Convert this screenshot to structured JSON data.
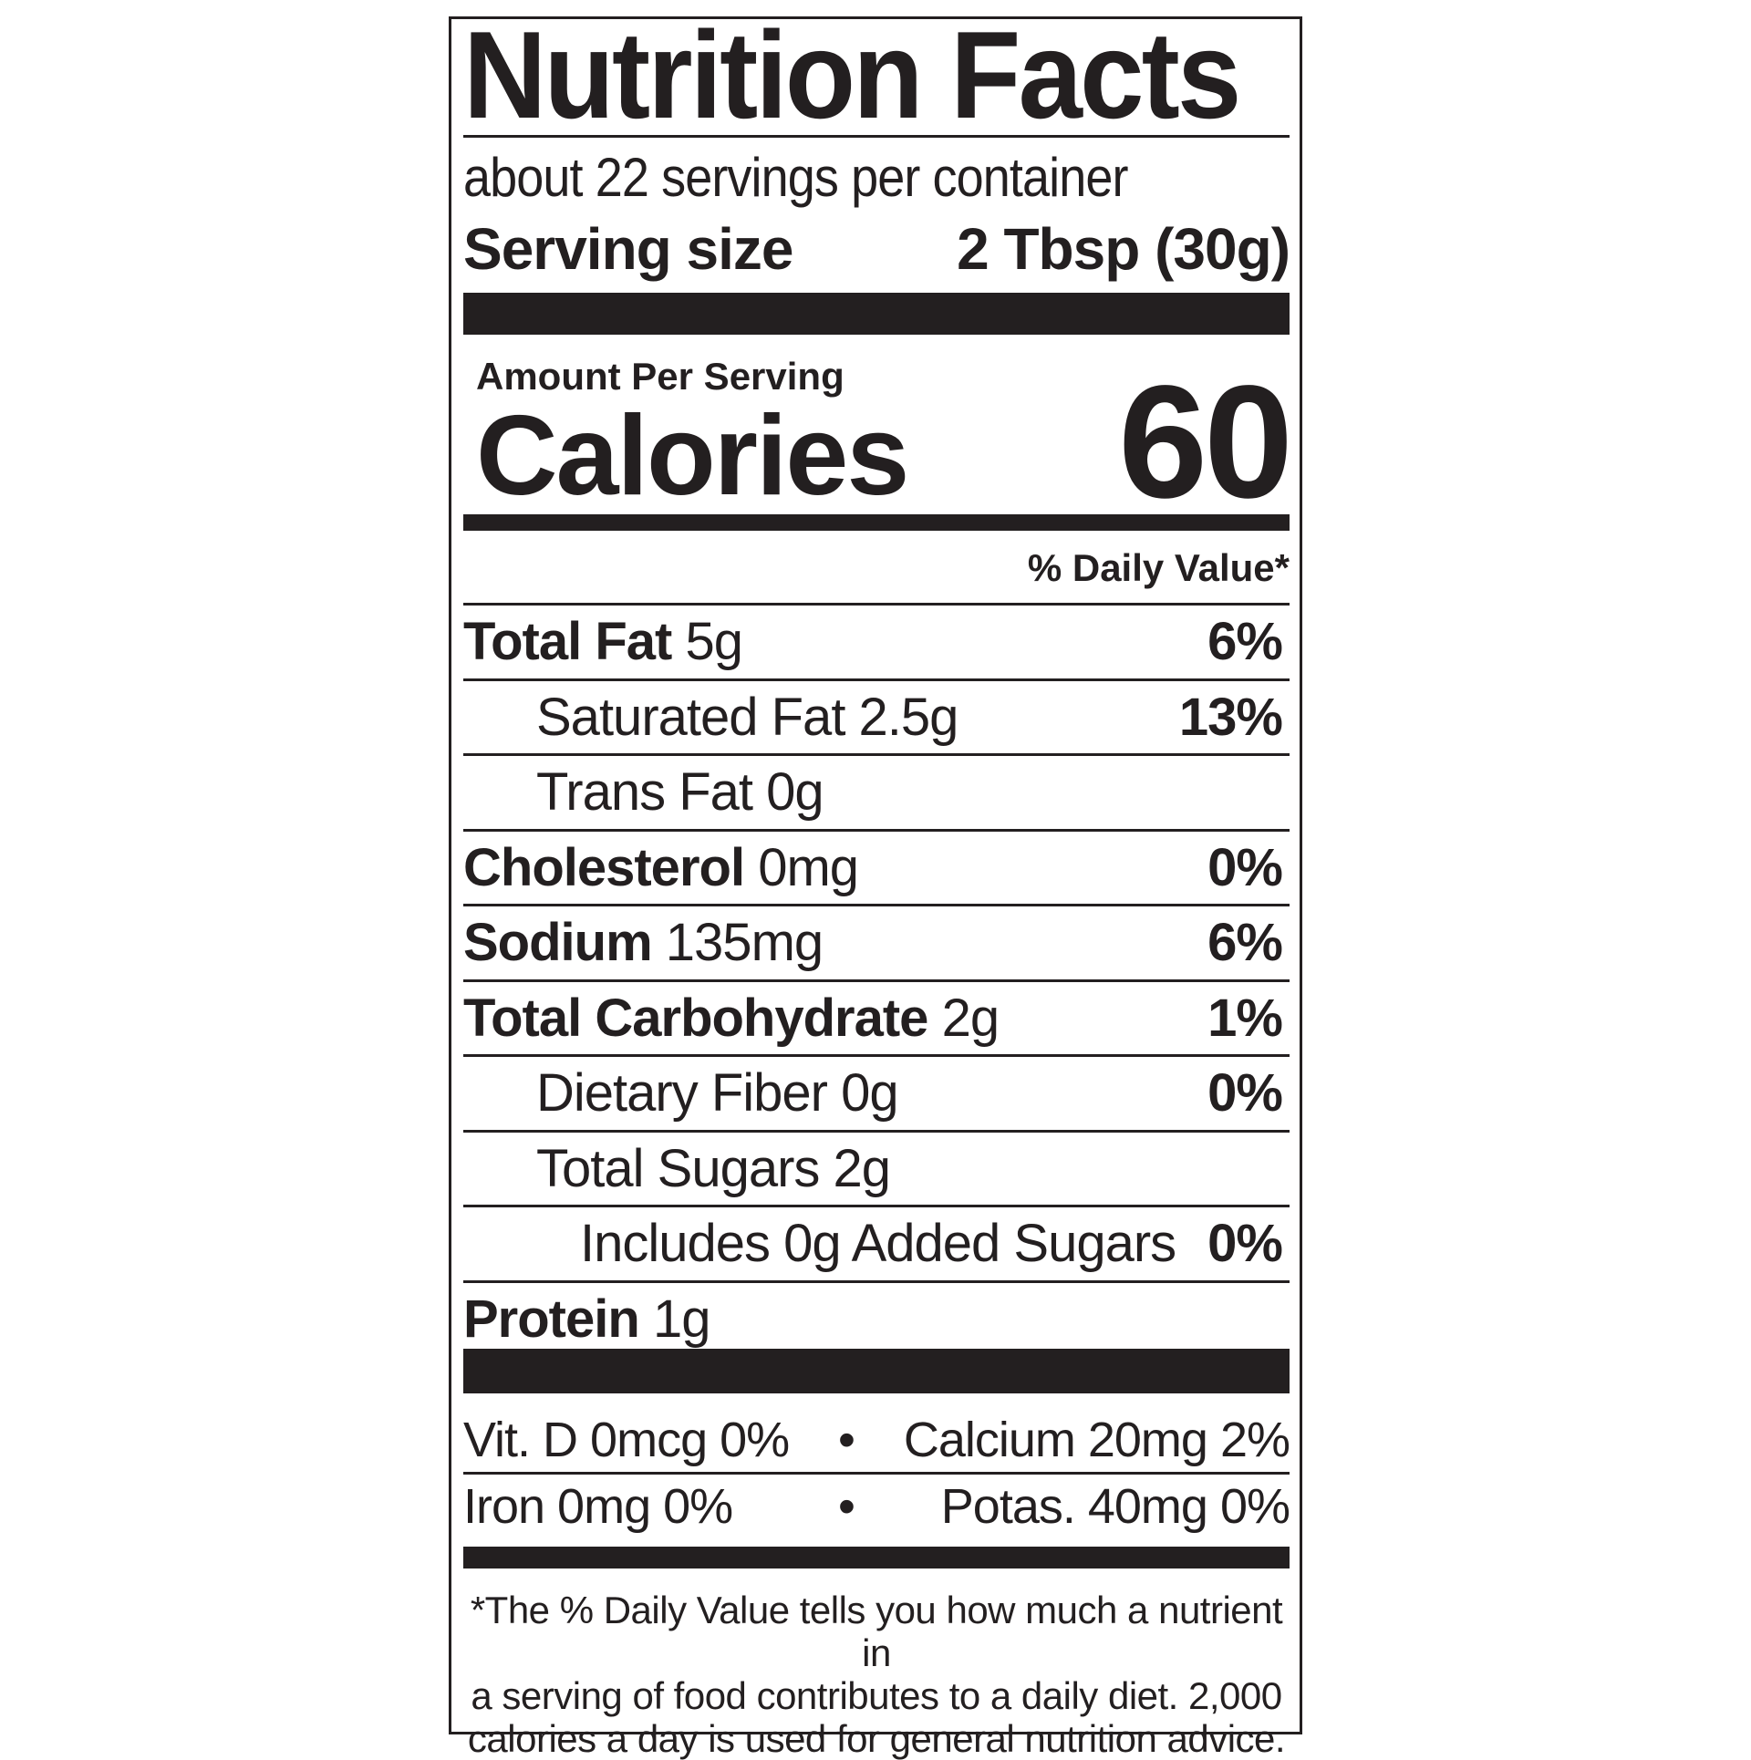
{
  "label": {
    "title": "Nutrition Facts",
    "servings_per_container": "about 22 servings per container",
    "serving_size_label": "Serving size",
    "serving_size_value": "2 Tbsp (30g)",
    "amount_per_serving": "Amount Per Serving",
    "calories_label": "Calories",
    "calories_value": "60",
    "daily_value_header": "% Daily Value*",
    "nutrients": [
      {
        "name": "Total Fat",
        "amount": "5g",
        "dv": "6%"
      },
      {
        "name": "Saturated Fat 2.5g",
        "amount": "",
        "dv": "13%"
      },
      {
        "name": "Trans Fat 0g",
        "amount": "",
        "dv": ""
      },
      {
        "name": "Cholesterol",
        "amount": "0mg",
        "dv": "0%"
      },
      {
        "name": "Sodium",
        "amount": "135mg",
        "dv": "6%"
      },
      {
        "name": "Total Carbohydrate",
        "amount": "2g",
        "dv": "1%"
      },
      {
        "name": "Dietary Fiber 0g",
        "amount": "",
        "dv": "0%"
      },
      {
        "name": "Total Sugars 2g",
        "amount": "",
        "dv": ""
      },
      {
        "name": "Includes 0g Added Sugars",
        "amount": "",
        "dv": "0%"
      },
      {
        "name": "Protein",
        "amount": "1g",
        "dv": ""
      }
    ],
    "minerals": [
      {
        "left": "Vit. D 0mcg 0%",
        "sep": "•",
        "right": "Calcium 20mg 2%"
      },
      {
        "left": "Iron 0mg 0%",
        "sep": "•",
        "right": "Potas. 40mg 0%"
      }
    ],
    "footnote": [
      "*The % Daily Value tells you how much a nutrient in",
      "a serving of food contributes to a daily diet. 2,000",
      "calories a day is used for general nutrition advice."
    ]
  }
}
